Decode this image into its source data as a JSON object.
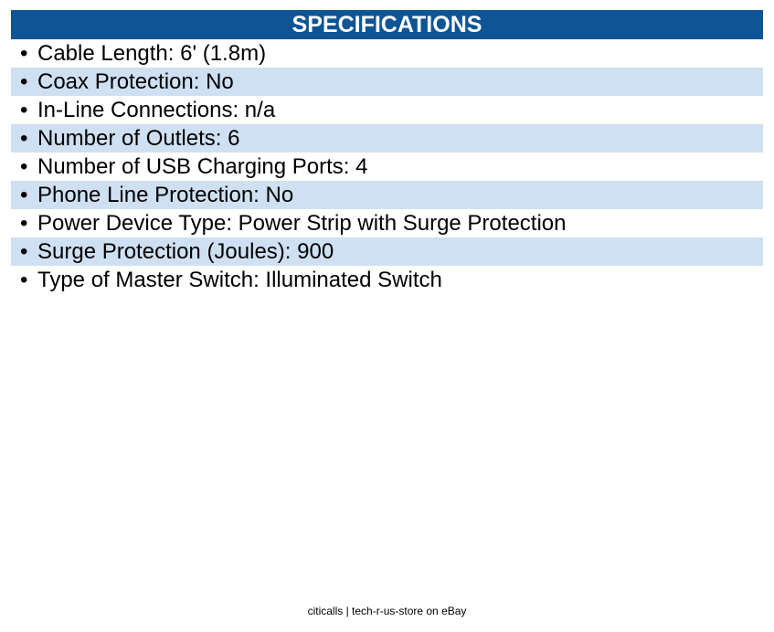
{
  "header": {
    "title": "SPECIFICATIONS",
    "color": "#0f5494"
  },
  "specs": [
    "Cable Length: 6' (1.8m)",
    "Coax Protection: No",
    "In-Line Connections: n/a",
    "Number of Outlets: 6",
    "Number of USB Charging Ports: 4",
    "Phone Line Protection: No",
    "Power Device Type: Power Strip with Surge Protection",
    "Surge Protection (Joules): 900",
    "Type of Master Switch: Illuminated Switch"
  ],
  "bullet": "•",
  "stripe_color": "#cfe0f2",
  "footer": "citicalls | tech-r-us-store on eBay"
}
